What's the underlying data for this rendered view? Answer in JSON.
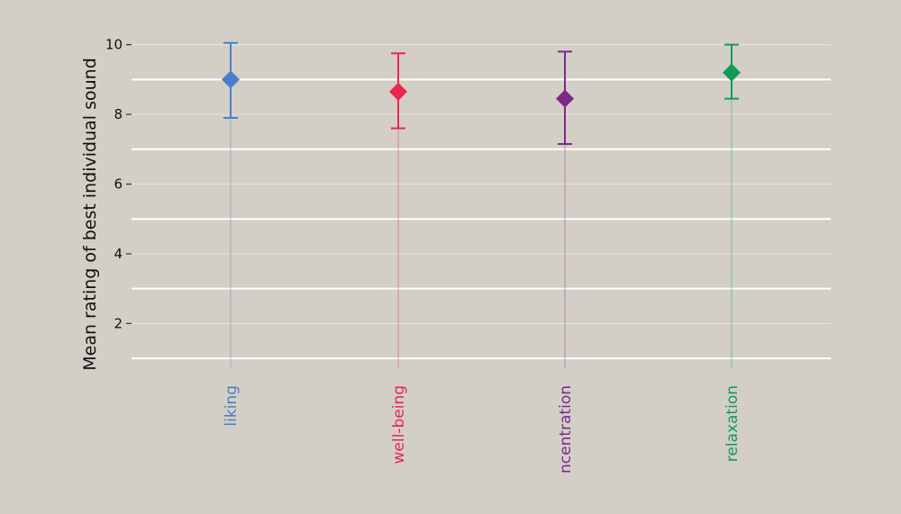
{
  "chart_data": {
    "type": "scatter",
    "title": "",
    "xlabel": "",
    "ylabel": "Mean rating of best individual sound",
    "ylim": [
      1,
      10.2
    ],
    "y_ticks": [
      2,
      4,
      6,
      8,
      10
    ],
    "y_tick_labels": [
      "2",
      "4",
      "6",
      "8",
      "10"
    ],
    "grid": true,
    "categories": [
      "liking",
      "well-being",
      "ncentration",
      "relaxation"
    ],
    "series": [
      {
        "category": "liking",
        "value": 9.0,
        "error_low": 7.9,
        "error_high": 10.05,
        "color": "#4a7fc7"
      },
      {
        "category": "well-being",
        "value": 8.65,
        "error_low": 7.6,
        "error_high": 9.75,
        "color": "#e8274f"
      },
      {
        "category": "ncentration",
        "value": 8.45,
        "error_low": 7.15,
        "error_high": 9.8,
        "color": "#7b2a8c"
      },
      {
        "category": "relaxation",
        "value": 9.2,
        "error_low": 8.45,
        "error_high": 10.0,
        "color": "#129a5a"
      }
    ]
  }
}
